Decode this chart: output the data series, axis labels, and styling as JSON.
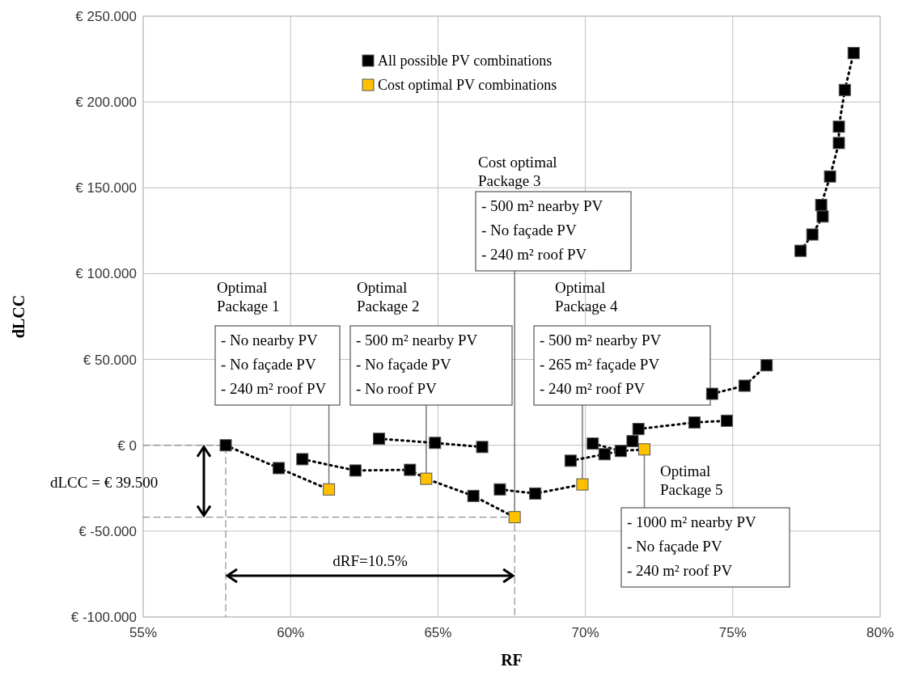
{
  "chart_data": {
    "type": "scatter",
    "xlabel": "RF",
    "ylabel": "dLCC",
    "xlim": [
      55,
      80
    ],
    "ylim": [
      -100,
      250
    ],
    "xticks": [
      {
        "value": 55,
        "label": "55%"
      },
      {
        "value": 60,
        "label": "60%"
      },
      {
        "value": 65,
        "label": "65%"
      },
      {
        "value": 70,
        "label": "70%"
      },
      {
        "value": 75,
        "label": "75%"
      },
      {
        "value": 80,
        "label": "80%"
      }
    ],
    "yticks": [
      {
        "value": -100,
        "label": "€ -100.000"
      },
      {
        "value": -50,
        "label": "€ -50.000"
      },
      {
        "value": 0,
        "label": "€ 0"
      },
      {
        "value": 50,
        "label": "€ 50.000"
      },
      {
        "value": 100,
        "label": "€ 100.000"
      },
      {
        "value": 150,
        "label": "€ 150.000"
      },
      {
        "value": 200,
        "label": "€ 200.000"
      },
      {
        "value": 250,
        "label": "€ 250.000"
      }
    ],
    "grid": true,
    "legend": "top",
    "series": [
      {
        "type": "line",
        "color": "#000000",
        "marker": "none",
        "line_style": "dotted",
        "x": [
          57.8,
          59.6,
          61.3,
          null,
          60.4,
          62.2,
          64.05,
          64.6,
          66.2,
          67.6,
          null,
          63.0,
          64.9,
          66.5,
          null,
          67.1,
          68.3,
          69.9,
          null,
          69.5,
          70.65,
          71.2,
          71.6,
          null,
          70.25,
          71.2,
          72.0,
          null,
          71.8,
          73.7,
          74.8,
          null,
          74.3,
          75.4,
          76.15,
          null,
          77.3,
          77.7,
          78.05,
          78.0,
          78.3,
          78.6,
          78.6,
          78.8,
          79.1
        ],
        "values": [
          0,
          -13.3,
          -25.7,
          null,
          -8.1,
          -14.7,
          -14.3,
          -19.5,
          -29.5,
          -41.9,
          null,
          3.8,
          1.4,
          -1.0,
          null,
          -25.7,
          -28.1,
          -22.8,
          null,
          -9.0,
          -5.2,
          -3.3,
          2.4,
          null,
          1.0,
          -3.3,
          -2.4,
          null,
          9.5,
          13.3,
          14.3,
          null,
          30.0,
          34.7,
          46.6,
          null,
          113.3,
          122.8,
          133.3,
          140.0,
          156.6,
          176.1,
          185.6,
          207.0,
          228.5
        ]
      },
      {
        "name": "All possible PV combinations",
        "color": "#000000",
        "marker": "square",
        "x": [
          57.8,
          59.6,
          60.4,
          62.2,
          64.05,
          66.2,
          63.0,
          64.9,
          66.5,
          67.1,
          68.3,
          69.5,
          70.25,
          70.65,
          71.2,
          71.6,
          71.8,
          73.7,
          74.8,
          74.3,
          75.4,
          76.15,
          77.3,
          77.7,
          78.05,
          78.0,
          78.3,
          78.6,
          78.6,
          78.8,
          79.1
        ],
        "values": [
          0,
          -13.3,
          -8.1,
          -14.7,
          -14.3,
          -29.5,
          3.8,
          1.4,
          -1.0,
          -25.7,
          -28.1,
          -9.0,
          1.0,
          -5.2,
          -3.3,
          2.4,
          9.5,
          13.3,
          14.3,
          30.0,
          34.7,
          46.6,
          113.3,
          122.8,
          133.3,
          140.0,
          156.6,
          176.1,
          185.6,
          207.0,
          228.5
        ]
      },
      {
        "type": "line",
        "color": "#777777",
        "marker": "none",
        "line_style": "dashed",
        "x": [
          55,
          57.8,
          57.8,
          null,
          55,
          67.6,
          67.6
        ],
        "values": [
          0,
          0,
          -100,
          null,
          -41.9,
          -41.9,
          -100
        ]
      },
      {
        "name": "Cost optimal PV combinations",
        "color": "#ffc000",
        "marker": "square",
        "x": [
          61.3,
          64.6,
          67.6,
          69.9,
          72.0
        ],
        "values": [
          -25.7,
          -19.5,
          -41.9,
          -22.8,
          -2.4
        ]
      }
    ],
    "annotations": [
      {
        "text": "Optimal\nPackage 1\n- No nearby PV\n- No façade PV\n- 240 m² roof PV",
        "x": 61.3,
        "y": -25.7
      },
      {
        "text": "Optimal\nPackage 2\n- 500 m² nearby PV\n- No façade PV\n- No roof PV",
        "x": 64.6,
        "y": -19.5
      },
      {
        "text": "Cost optimal\nPackage 3\n- 500 m² nearby PV\n- No façade PV\n- 240 m² roof PV",
        "x": 67.6,
        "y": -41.9
      },
      {
        "text": "Optimal\nPackage 4\n- 500 m² nearby PV\n- 265 m² façade PV\n- 240 m² roof PV",
        "x": 69.9,
        "y": -22.8
      },
      {
        "text": "Optimal\nPackage 5\n- 1000 m² nearby PV\n- No façade PV\n- 240 m² roof PV",
        "x": 72.0,
        "y": -2.4
      },
      "dLCC = € 39.500",
      "dRF=10.5%"
    ]
  }
}
